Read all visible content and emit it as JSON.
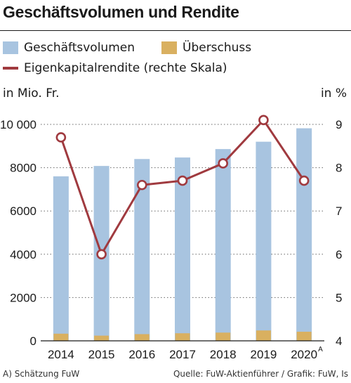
{
  "title": "Geschäftsvolumen und Rendite",
  "legend": {
    "volumen": "Geschäftsvolumen",
    "ueberschuss": "Überschuss",
    "rendite": "Eigenkapitalrendite (rechte Skala)"
  },
  "axes": {
    "left_unit": "in Mio. Fr.",
    "right_unit": "in %"
  },
  "footer": {
    "left": "A) Schätzung FuW",
    "right": "Quelle: FuW-Aktienführer / Grafik: FuW, Is"
  },
  "colors": {
    "volumen": "#a8c4e0",
    "ueberschuss": "#d9b060",
    "rendite": "#a03a3f",
    "grid": "#666666"
  },
  "chart_data": {
    "type": "bar",
    "categories": [
      "2014",
      "2015",
      "2016",
      "2017",
      "2018",
      "2019",
      "2020"
    ],
    "category_superscript": [
      "",
      "",
      "",
      "",
      "",
      "",
      "A"
    ],
    "series": [
      {
        "name": "Geschäftsvolumen",
        "axis": "left",
        "values": [
          7600,
          8080,
          8400,
          8470,
          8860,
          9200,
          9820
        ]
      },
      {
        "name": "Überschuss",
        "axis": "left",
        "values": [
          330,
          240,
          310,
          350,
          380,
          480,
          420
        ]
      },
      {
        "name": "Eigenkapitalrendite (rechte Skala)",
        "type": "line",
        "axis": "right",
        "values": [
          8.7,
          6.0,
          7.6,
          7.7,
          8.1,
          9.1,
          7.7
        ]
      }
    ],
    "left_axis": {
      "min": 0,
      "max": 10000,
      "ticks": [
        0,
        2000,
        4000,
        6000,
        8000,
        10000
      ],
      "tick_labels": [
        "0",
        "2000",
        "4000",
        "6000",
        "8000",
        "10 000"
      ]
    },
    "right_axis": {
      "min": 4,
      "max": 9,
      "ticks": [
        4,
        5,
        6,
        7,
        8,
        9
      ],
      "tick_labels": [
        "4",
        "5",
        "6",
        "7",
        "8",
        "9"
      ]
    },
    "grid": true
  }
}
